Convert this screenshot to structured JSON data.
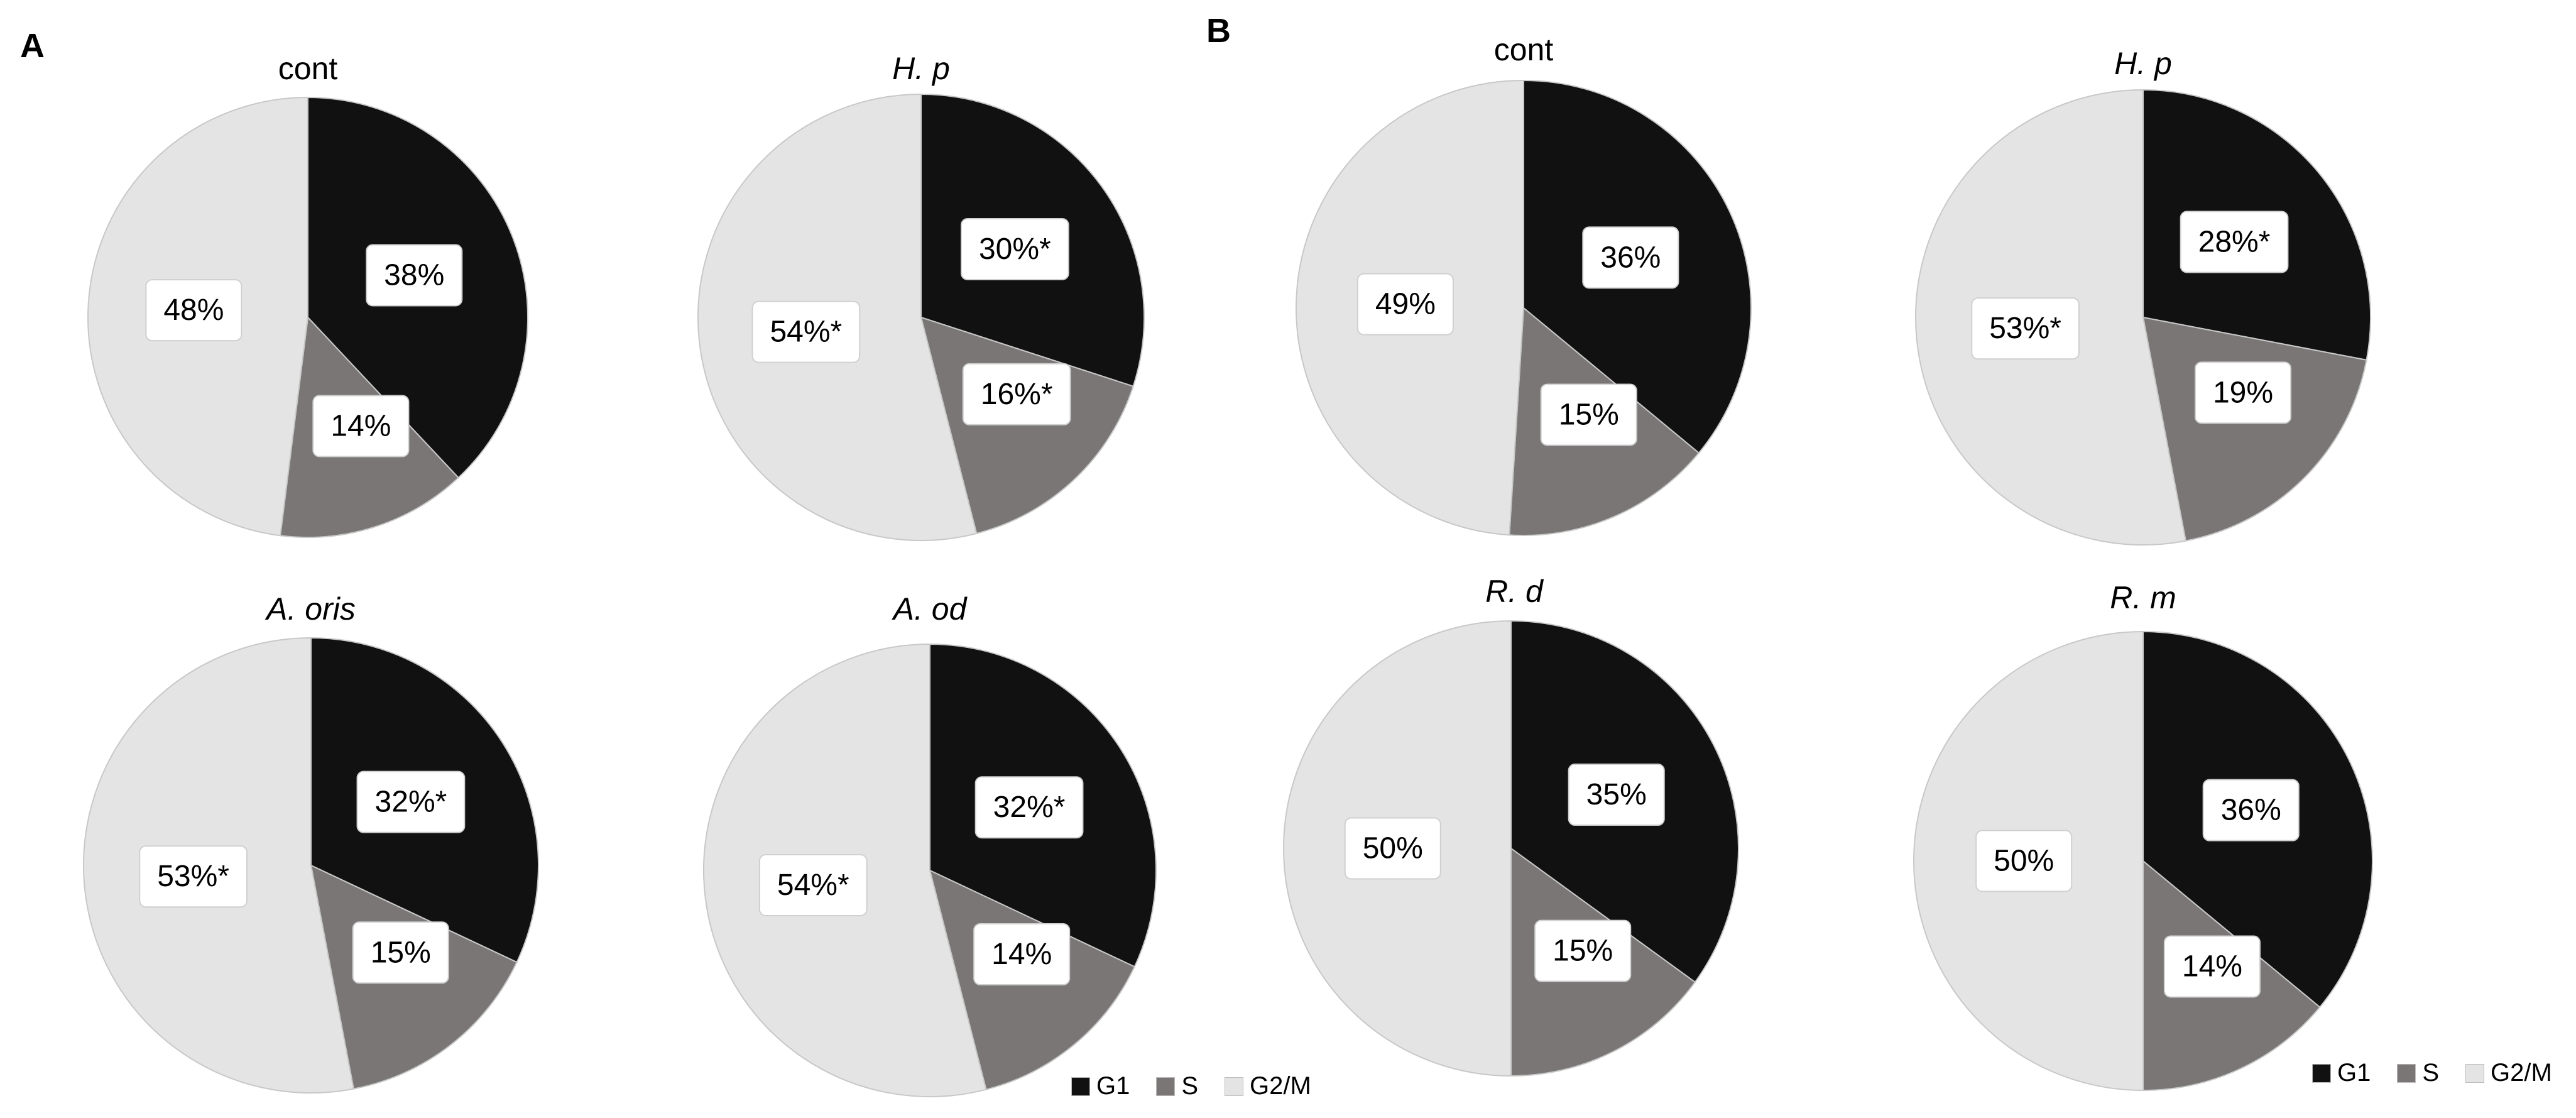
{
  "panels": [
    {
      "letter": "A"
    },
    {
      "letter": "B"
    }
  ],
  "legend": [
    {
      "label": "G1",
      "color": "#111111"
    },
    {
      "label": "S",
      "color": "#7a7676"
    },
    {
      "label": "G2/M",
      "color": "#e4e4e4"
    }
  ],
  "chart_data": [
    {
      "type": "pie",
      "panel": "A",
      "title": "cont",
      "title_style": "normal",
      "slices": [
        {
          "name": "G1",
          "value": 38,
          "label": "38%"
        },
        {
          "name": "S",
          "value": 14,
          "label": "14%"
        },
        {
          "name": "G2/M",
          "value": 48,
          "label": "48%"
        }
      ]
    },
    {
      "type": "pie",
      "panel": "A",
      "title": "H. p",
      "title_style": "italic",
      "slices": [
        {
          "name": "G1",
          "value": 30,
          "label": "30%*"
        },
        {
          "name": "S",
          "value": 16,
          "label": "16%*"
        },
        {
          "name": "G2/M",
          "value": 54,
          "label": "54%*"
        }
      ]
    },
    {
      "type": "pie",
      "panel": "A",
      "title": "A. oris",
      "title_style": "italic",
      "slices": [
        {
          "name": "G1",
          "value": 32,
          "label": "32%*"
        },
        {
          "name": "S",
          "value": 15,
          "label": "15%"
        },
        {
          "name": "G2/M",
          "value": 53,
          "label": "53%*"
        }
      ]
    },
    {
      "type": "pie",
      "panel": "A",
      "title": "A. od",
      "title_style": "italic",
      "slices": [
        {
          "name": "G1",
          "value": 32,
          "label": "32%*"
        },
        {
          "name": "S",
          "value": 14,
          "label": "14%"
        },
        {
          "name": "G2/M",
          "value": 54,
          "label": "54%*"
        }
      ]
    },
    {
      "type": "pie",
      "panel": "B",
      "title": "cont",
      "title_style": "normal",
      "slices": [
        {
          "name": "G1",
          "value": 36,
          "label": "36%"
        },
        {
          "name": "S",
          "value": 15,
          "label": "15%"
        },
        {
          "name": "G2/M",
          "value": 49,
          "label": "49%"
        }
      ]
    },
    {
      "type": "pie",
      "panel": "B",
      "title": "H. p",
      "title_style": "italic",
      "slices": [
        {
          "name": "G1",
          "value": 28,
          "label": "28%*"
        },
        {
          "name": "S",
          "value": 19,
          "label": "19%"
        },
        {
          "name": "G2/M",
          "value": 53,
          "label": "53%*"
        }
      ]
    },
    {
      "type": "pie",
      "panel": "B",
      "title": "R. d",
      "title_style": "italic",
      "slices": [
        {
          "name": "G1",
          "value": 35,
          "label": "35%"
        },
        {
          "name": "S",
          "value": 15,
          "label": "15%"
        },
        {
          "name": "G2/M",
          "value": 50,
          "label": "50%"
        }
      ]
    },
    {
      "type": "pie",
      "panel": "B",
      "title": "R. m",
      "title_style": "italic",
      "slices": [
        {
          "name": "G1",
          "value": 36,
          "label": "36%"
        },
        {
          "name": "S",
          "value": 14,
          "label": "14%"
        },
        {
          "name": "G2/M",
          "value": 50,
          "label": "50%"
        }
      ]
    }
  ]
}
